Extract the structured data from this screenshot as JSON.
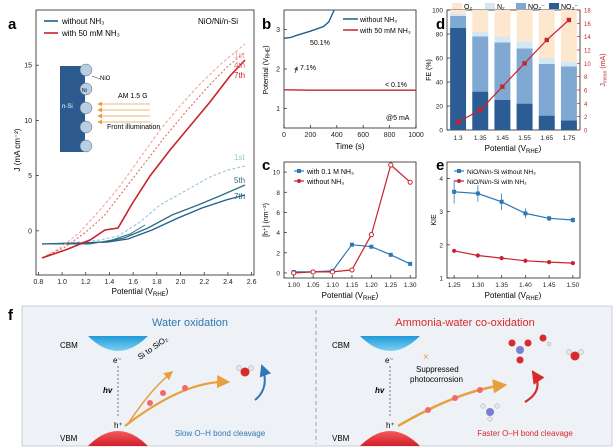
{
  "colors": {
    "dark_blue": "#1f5f8b",
    "teal": "#2f6f86",
    "red": "#c8232c",
    "light_red": "#f3a3a3",
    "light_blue": "#9fc4dc",
    "peach": "#f9ddc5",
    "o2": "#fde7cf",
    "n2": "#d7e7f1",
    "no2": "#7fa9d3",
    "no3": "#2b5c93"
  },
  "panel_labels": [
    "a",
    "b",
    "c",
    "d",
    "e",
    "f"
  ],
  "panel_a": {
    "legend": [
      "without NH₃",
      "with 50 mM NH₃"
    ],
    "title": "NiO/Ni/n-Si",
    "ylabel": "J (mA cm⁻²)",
    "xlabel": "Potential (V",
    "xlabel_sub": "RHE",
    "xticks": [
      "0.8",
      "1.0",
      "1.2",
      "1.4",
      "1.6",
      "1.8",
      "2.0",
      "2.2",
      "2.4",
      "2.6"
    ],
    "yticks": [
      "0",
      "5",
      "10",
      "15"
    ],
    "scan_labels_red": [
      "1st",
      "4th",
      "7th"
    ],
    "scan_labels_blue": [
      "1st",
      "5th",
      "7th"
    ],
    "inset": {
      "nio": "NiO",
      "ni": "Ni",
      "nsi": "n-Si",
      "am": "AM 1.5 G",
      "front": "Front illumination"
    }
  },
  "panel_b": {
    "legend": [
      "without NH₃",
      "with 50 mM NH₃"
    ],
    "ylabel": "Potential (V",
    "ylabel_sub": "RHE",
    "xlabel": "Time (s)",
    "xticks": [
      "0",
      "200",
      "400",
      "600",
      "800",
      "1000"
    ],
    "yticks": [
      "1",
      "2",
      "3"
    ],
    "annotations": [
      "50.1%",
      "7.1%",
      "< 0.1%",
      "@5 mA"
    ]
  },
  "panel_c": {
    "legend": [
      "with 0.1 M NH₃",
      "without NH₃"
    ],
    "ylabel": "[h⁺] (nm⁻²)",
    "xlabel": "Potential (V",
    "xlabel_sub": "RHE",
    "xticks": [
      "1.00",
      "1.05",
      "1.10",
      "1.15",
      "1.20",
      "1.25",
      "1.30"
    ],
    "yticks": [
      "0",
      "2",
      "4",
      "6",
      "8",
      "10"
    ]
  },
  "panel_d": {
    "legend": [
      "O₂",
      "N₂",
      "NO₂⁻",
      "NO₃⁻"
    ],
    "ylabel": "FE (%)",
    "ylabel_right": "J",
    "ylabel_right_sub": "mean",
    "ylabel_right_unit": " (mA)",
    "xlabel": "Potential (V",
    "xlabel_sub": "RHE",
    "xticks": [
      "1.3",
      "1.35",
      "1.45",
      "1.55",
      "1.65",
      "1.75"
    ],
    "yticks": [
      "0",
      "20",
      "40",
      "60",
      "80",
      "100"
    ],
    "yticks_right": [
      "0",
      "2",
      "4",
      "6",
      "8",
      "10",
      "12",
      "14",
      "16",
      "18"
    ]
  },
  "panel_e": {
    "legend": [
      "NiO/Ni/n-Si without NH₃",
      "NiO/Ni/n-Si with NH₃"
    ],
    "ylabel": "KIE",
    "xlabel": "Potential (V",
    "xlabel_sub": "RHE",
    "xticks": [
      "1.25",
      "1.30",
      "1.35",
      "1.40",
      "1.45",
      "1.50"
    ],
    "yticks": [
      "1",
      "2",
      "3",
      "4"
    ]
  },
  "panel_f": {
    "left_title": "Water oxidation",
    "right_title": "Ammonia-water co-oxidation",
    "cbm": "CBM",
    "vbm": "VBM",
    "hv": "hv",
    "electron": "e⁻",
    "hole": "h⁺",
    "si_label": "Si to SiO₂",
    "suppressed": "Suppressed",
    "photocorrosion": "photocorrosion",
    "left_caption": "Slow O–H bond cleavage",
    "right_caption": "Faster O–H bond cleavage",
    "cross": "×"
  },
  "chart_data": [
    {
      "panel": "b",
      "type": "line",
      "title": "",
      "xlabel": "Time (s)",
      "ylabel": "Potential (V_RHE)",
      "xlim": [
        0,
        1000
      ],
      "ylim": [
        0.5,
        3.5
      ],
      "series": [
        {
          "name": "without NH₃",
          "x": [
            0,
            50,
            100,
            200,
            300,
            340,
            360,
            380
          ],
          "y": [
            2.78,
            2.8,
            2.86,
            2.96,
            3.08,
            3.2,
            3.35,
            3.5
          ]
        },
        {
          "name": "with 50 mM NH₃",
          "x": [
            0,
            200,
            400,
            600,
            800,
            1000
          ],
          "y": [
            1.47,
            1.46,
            1.46,
            1.46,
            1.46,
            1.46
          ]
        }
      ]
    },
    {
      "panel": "c",
      "type": "line",
      "title": "",
      "xlabel": "Potential (V_RHE)",
      "ylabel": "[h⁺] (nm⁻²)",
      "xlim": [
        0.975,
        1.315
      ],
      "ylim": [
        -0.5,
        11
      ],
      "series": [
        {
          "name": "with 0.1 M NH₃",
          "x": [
            1.0,
            1.05,
            1.1,
            1.15,
            1.2,
            1.25,
            1.3
          ],
          "y": [
            0.1,
            0.1,
            0.2,
            2.8,
            2.6,
            1.8,
            0.9
          ]
        },
        {
          "name": "without NH₃",
          "x": [
            1.0,
            1.05,
            1.1,
            1.15,
            1.2,
            1.25,
            1.3
          ],
          "y": [
            0.0,
            0.1,
            0.1,
            0.3,
            3.8,
            10.7,
            9.0
          ]
        }
      ]
    },
    {
      "panel": "d",
      "type": "bar",
      "title": "",
      "xlabel": "Potential (V_RHE)",
      "ylabel": "FE (%)",
      "categories": [
        "1.3",
        "1.35",
        "1.45",
        "1.55",
        "1.65",
        "1.75"
      ],
      "ylim": [
        0,
        100
      ],
      "series": [
        {
          "name": "NO₃⁻",
          "values": [
            85,
            32,
            25,
            22,
            12,
            8
          ]
        },
        {
          "name": "NO₂⁻",
          "values": [
            10,
            46,
            48,
            46,
            43,
            45
          ]
        },
        {
          "name": "N₂",
          "values": [
            2,
            4,
            5,
            6,
            5,
            4
          ]
        },
        {
          "name": "O₂",
          "values": [
            3,
            18,
            22,
            26,
            40,
            43
          ]
        },
        {
          "name": "J_mean (mA)",
          "axis": "right",
          "values": [
            1.2,
            3.0,
            6.5,
            10.0,
            13.5,
            16.5
          ],
          "ylim": [
            0,
            18
          ]
        }
      ]
    },
    {
      "panel": "e",
      "type": "line",
      "title": "",
      "xlabel": "Potential (V_RHE)",
      "ylabel": "KIE",
      "xlim": [
        1.235,
        1.515
      ],
      "ylim": [
        1,
        4.5
      ],
      "series": [
        {
          "name": "NiO/Ni/n-Si without NH₃",
          "x": [
            1.25,
            1.3,
            1.35,
            1.4,
            1.45,
            1.5
          ],
          "y": [
            3.6,
            3.55,
            3.3,
            2.95,
            2.8,
            2.75
          ]
        },
        {
          "name": "NiO/Ni/n-Si with NH₃",
          "x": [
            1.25,
            1.3,
            1.35,
            1.4,
            1.45,
            1.5
          ],
          "y": [
            1.82,
            1.68,
            1.6,
            1.52,
            1.48,
            1.45
          ]
        }
      ]
    }
  ]
}
